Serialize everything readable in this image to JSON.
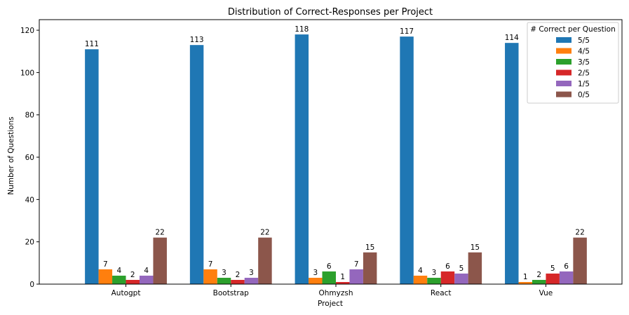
{
  "chart_data": {
    "type": "bar",
    "title": "Distribution of Correct-Responses per Project",
    "xlabel": "Project",
    "ylabel": "Number of Questions",
    "ylim": [
      0,
      125
    ],
    "yticks": [
      0,
      20,
      40,
      60,
      80,
      100,
      120
    ],
    "categories": [
      "Autogpt",
      "Bootstrap",
      "Ohmyzsh",
      "React",
      "Vue"
    ],
    "legend_title": "# Correct per Question",
    "legend_position": "top-right",
    "grid": false,
    "series": [
      {
        "name": "5/5",
        "color": "#1f77b4",
        "values": [
          111,
          113,
          118,
          117,
          114
        ]
      },
      {
        "name": "4/5",
        "color": "#ff7f0e",
        "values": [
          7,
          7,
          3,
          4,
          1
        ]
      },
      {
        "name": "3/5",
        "color": "#2ca02c",
        "values": [
          4,
          3,
          6,
          3,
          2
        ]
      },
      {
        "name": "2/5",
        "color": "#d62728",
        "values": [
          2,
          2,
          1,
          6,
          5
        ]
      },
      {
        "name": "1/5",
        "color": "#9467bd",
        "values": [
          4,
          3,
          7,
          5,
          6
        ]
      },
      {
        "name": "0/5",
        "color": "#8c564b",
        "values": [
          22,
          22,
          15,
          15,
          22
        ]
      }
    ]
  }
}
